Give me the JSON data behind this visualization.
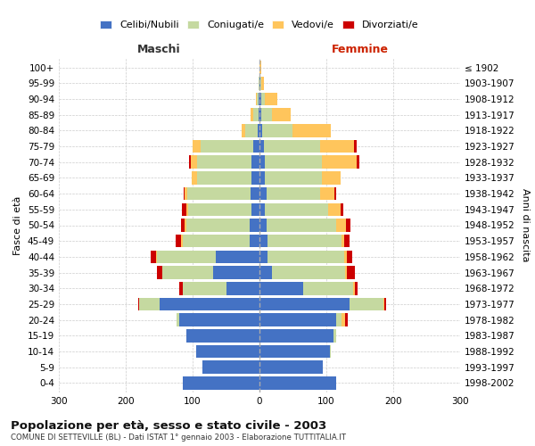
{
  "age_groups": [
    "100+",
    "95-99",
    "90-94",
    "85-89",
    "80-84",
    "75-79",
    "70-74",
    "65-69",
    "60-64",
    "55-59",
    "50-54",
    "45-49",
    "40-44",
    "35-39",
    "30-34",
    "25-29",
    "20-24",
    "15-19",
    "10-14",
    "5-9",
    "0-4"
  ],
  "birth_years": [
    "≤ 1902",
    "1903-1907",
    "1908-1912",
    "1913-1917",
    "1918-1922",
    "1923-1927",
    "1928-1932",
    "1933-1937",
    "1938-1942",
    "1943-1947",
    "1948-1952",
    "1953-1957",
    "1958-1962",
    "1963-1967",
    "1968-1972",
    "1973-1977",
    "1978-1982",
    "1983-1987",
    "1988-1992",
    "1993-1997",
    "1998-2002"
  ],
  "colors": {
    "celibi": "#4472c4",
    "coniugati": "#c5d9a0",
    "vedovi": "#ffc55c",
    "divorziati": "#cc0000"
  },
  "maschi": {
    "celibi": [
      0,
      0,
      1,
      2,
      3,
      10,
      12,
      12,
      13,
      12,
      15,
      15,
      65,
      70,
      50,
      150,
      120,
      110,
      95,
      85,
      115
    ],
    "coniugati": [
      0,
      1,
      3,
      8,
      18,
      78,
      82,
      82,
      95,
      95,
      95,
      100,
      88,
      75,
      65,
      30,
      4,
      0,
      0,
      0,
      0
    ],
    "vedovi": [
      0,
      0,
      1,
      4,
      6,
      12,
      9,
      7,
      4,
      2,
      2,
      2,
      2,
      0,
      0,
      0,
      0,
      0,
      0,
      0,
      0
    ],
    "divorziati": [
      0,
      0,
      0,
      0,
      0,
      0,
      3,
      0,
      2,
      7,
      5,
      8,
      8,
      8,
      5,
      2,
      0,
      0,
      0,
      0,
      0
    ]
  },
  "femmine": {
    "celibi": [
      0,
      1,
      2,
      3,
      4,
      6,
      8,
      8,
      10,
      8,
      10,
      12,
      12,
      18,
      65,
      135,
      115,
      110,
      105,
      95,
      115
    ],
    "coniugati": [
      0,
      1,
      6,
      15,
      45,
      85,
      85,
      85,
      80,
      95,
      105,
      110,
      115,
      110,
      75,
      50,
      8,
      4,
      2,
      0,
      0
    ],
    "vedovi": [
      2,
      4,
      18,
      28,
      58,
      50,
      52,
      28,
      22,
      18,
      14,
      4,
      4,
      2,
      2,
      2,
      5,
      0,
      0,
      0,
      0
    ],
    "divorziati": [
      0,
      0,
      0,
      0,
      0,
      4,
      4,
      0,
      2,
      4,
      7,
      8,
      8,
      12,
      4,
      2,
      4,
      0,
      0,
      0,
      0
    ]
  },
  "xlim": 300,
  "title": "Popolazione per età, sesso e stato civile - 2003",
  "subtitle": "COMUNE DI SETTEVILLE (BL) - Dati ISTAT 1° gennaio 2003 - Elaborazione TUTTITALIA.IT",
  "ylabel_left": "Fasce di età",
  "ylabel_right": "Anni di nascita",
  "xlabel_left": "Maschi",
  "xlabel_right": "Femmine"
}
